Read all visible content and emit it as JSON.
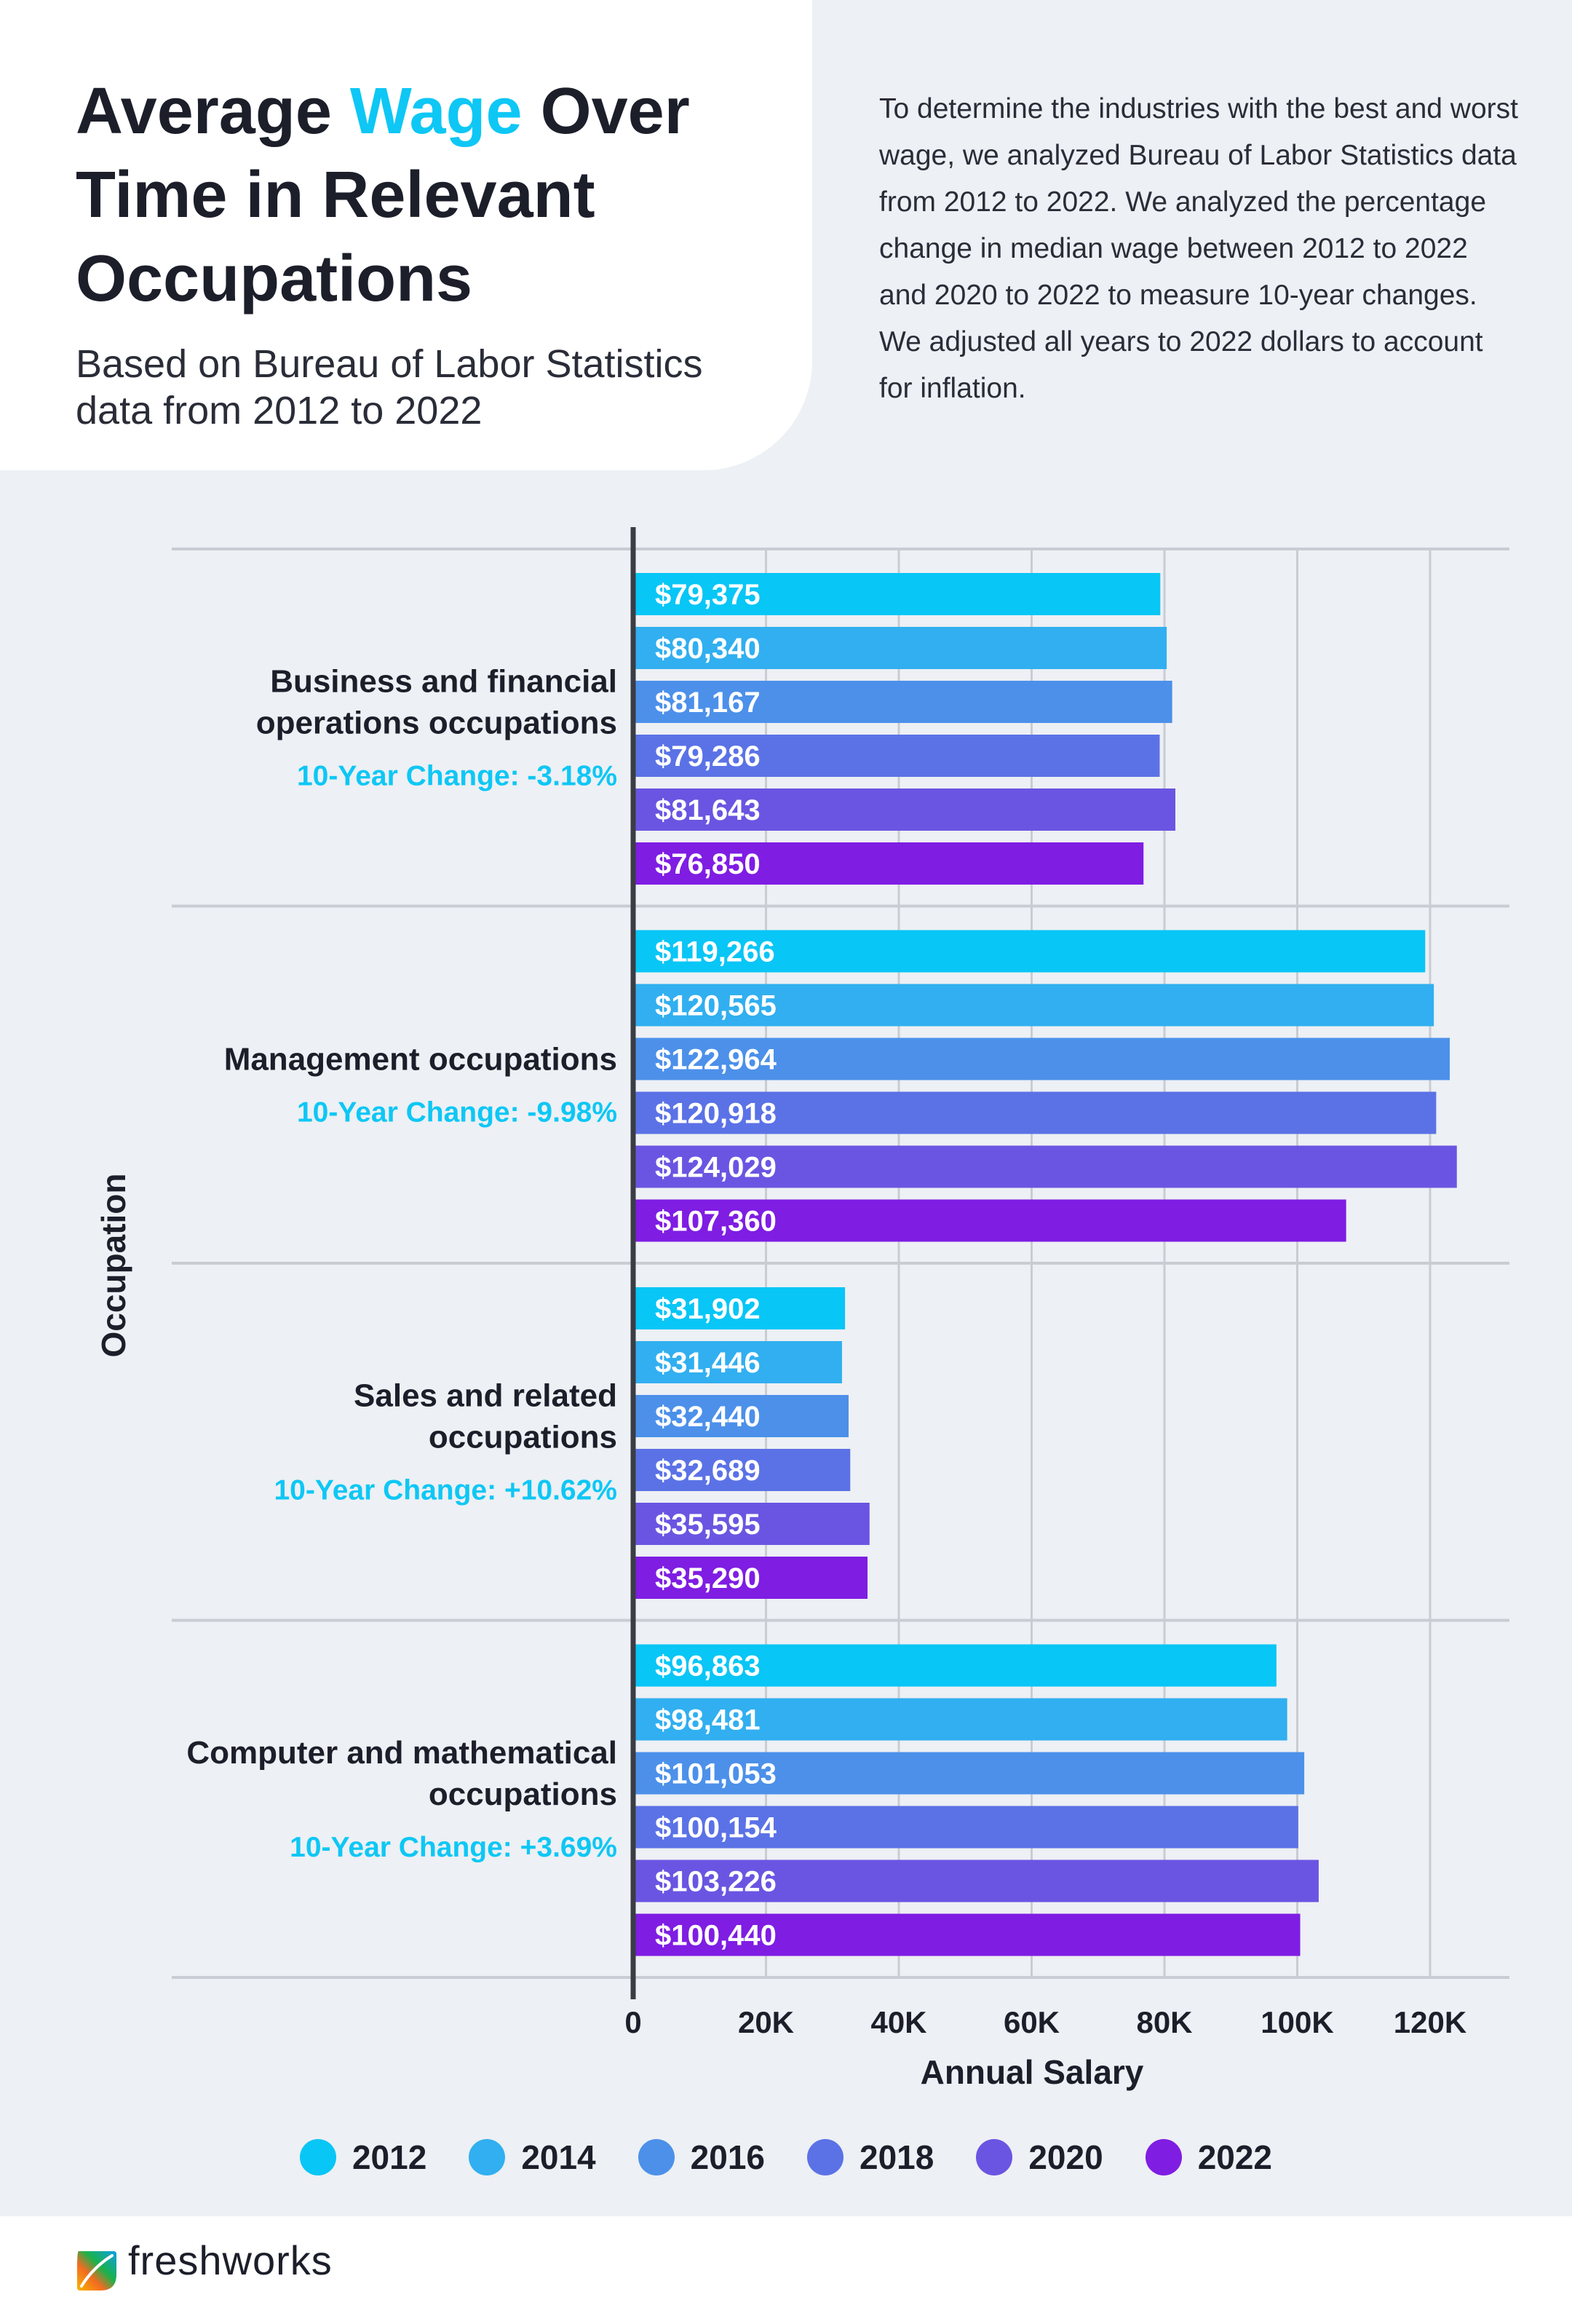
{
  "header": {
    "title_part1": "Average ",
    "title_accent": "Wage",
    "title_part2": " Over Time in Relevant Occupations",
    "subtitle": "Based on Bureau of Labor Statistics data from 2012 to 2022",
    "intro": "To determine the industries with the best and worst wage, we analyzed Bureau of Labor Statistics data from 2012 to 2022. We analyzed the percentage change in median wage between 2012 to 2022 and 2020 to 2022 to measure 10-year changes. We adjusted all years to 2022 dollars to account for inflation."
  },
  "colors": {
    "accent": "#0ec7f5",
    "series": [
      "#08c6f6",
      "#31aff0",
      "#4c90ea",
      "#5b72e6",
      "#6a55e2",
      "#7f1de3"
    ]
  },
  "chart_data": {
    "type": "bar",
    "orientation": "horizontal",
    "xlabel": "Annual Salary",
    "ylabel": "Occupation",
    "xlim": [
      0,
      130000
    ],
    "xticks": [
      0,
      20000,
      40000,
      60000,
      80000,
      100000,
      120000
    ],
    "xtick_labels": [
      "0",
      "20K",
      "40K",
      "60K",
      "80K",
      "100K",
      "120K"
    ],
    "grid": true,
    "legend_position": "bottom",
    "series_names": [
      "2012",
      "2014",
      "2016",
      "2018",
      "2020",
      "2022"
    ],
    "categories": [
      {
        "label": [
          "Business and financial",
          "operations occupations"
        ],
        "change": "10-Year Change: -3.18%",
        "values": [
          79375,
          80340,
          81167,
          79286,
          81643,
          76850
        ],
        "value_labels": [
          "$79,375",
          "$80,340",
          "$81,167",
          "$79,286",
          "$81,643",
          "$76,850"
        ]
      },
      {
        "label": [
          "Management occupations"
        ],
        "change": "10-Year Change: -9.98%",
        "values": [
          119266,
          120565,
          122964,
          120918,
          124029,
          107360
        ],
        "value_labels": [
          "$119,266",
          "$120,565",
          "$122,964",
          "$120,918",
          "$124,029",
          "$107,360"
        ]
      },
      {
        "label": [
          "Sales and related",
          "occupations"
        ],
        "change": "10-Year Change: +10.62%",
        "values": [
          31902,
          31446,
          32440,
          32689,
          35595,
          35290
        ],
        "value_labels": [
          "$31,902",
          "$31,446",
          "$32,440",
          "$32,689",
          "$35,595",
          "$35,290"
        ]
      },
      {
        "label": [
          "Computer and mathematical",
          "occupations"
        ],
        "change": "10-Year Change: +3.69%",
        "values": [
          96863,
          98481,
          101053,
          100154,
          103226,
          100440
        ],
        "value_labels": [
          "$96,863",
          "$98,481",
          "$101,053",
          "$100,154",
          "$103,226",
          "$100,440"
        ]
      }
    ]
  },
  "footer": {
    "brand": "freshworks"
  }
}
